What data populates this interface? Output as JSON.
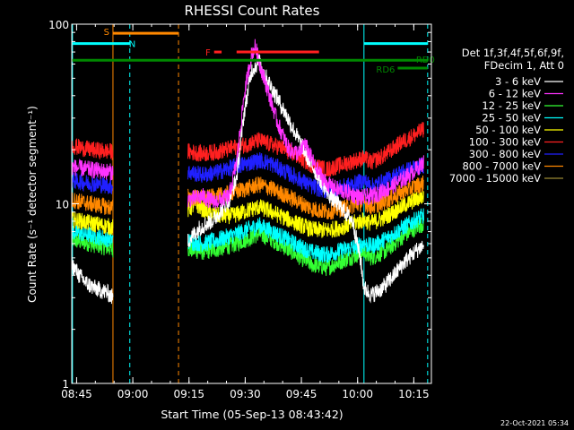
{
  "chart_data": {
    "type": "line",
    "title": "RHESSI Count Rates",
    "xlabel": "Start Time (05-Sep-13 08:43:42)",
    "ylabel": "Count Rate (s⁻¹ detector segment⁻¹)",
    "yscale": "log",
    "ylim": [
      1,
      100
    ],
    "xlim_minutes": [
      0,
      96
    ],
    "x_ticks": [
      {
        "label": "08:45",
        "minute": 1.3
      },
      {
        "label": "09:00",
        "minute": 16.3
      },
      {
        "label": "09:15",
        "minute": 31.3
      },
      {
        "label": "09:30",
        "minute": 46.3
      },
      {
        "label": "09:45",
        "minute": 61.3
      },
      {
        "label": "10:00",
        "minute": 76.3
      },
      {
        "label": "10:15",
        "minute": 91.3
      }
    ],
    "y_ticks": [
      {
        "label": "1",
        "value": 1
      },
      {
        "label": "10",
        "value": 10
      },
      {
        "label": "100",
        "value": 100
      }
    ],
    "legend_header": [
      "Det 1f,3f,4f,5f,6f,9f,",
      "FDecim 1, Att 0"
    ],
    "data_gap_minutes": [
      11,
      31
    ],
    "series": [
      {
        "name": "3 - 6 keV",
        "color": "#ffffff",
        "pts": [
          [
            0,
            4.6
          ],
          [
            2,
            4.0
          ],
          [
            4,
            3.6
          ],
          [
            6,
            3.4
          ],
          [
            9.5,
            3.2
          ],
          [
            11,
            3.0
          ],
          [
            31,
            6.2
          ],
          [
            34,
            7.3
          ],
          [
            38,
            8.2
          ],
          [
            42,
            10.5
          ],
          [
            44,
            14
          ],
          [
            46,
            32
          ],
          [
            48,
            55
          ],
          [
            50,
            62
          ],
          [
            52,
            50
          ],
          [
            56,
            35
          ],
          [
            60,
            24
          ],
          [
            63,
            18
          ],
          [
            66,
            14
          ],
          [
            69,
            11
          ],
          [
            72,
            9.5
          ],
          [
            75,
            8
          ],
          [
            77,
            5
          ],
          [
            78,
            3.4
          ],
          [
            80,
            3.1
          ],
          [
            83,
            3.4
          ],
          [
            86,
            4
          ],
          [
            89,
            4.8
          ],
          [
            92,
            5.5
          ],
          [
            94,
            5.9
          ]
        ]
      },
      {
        "name": "6 - 12 keV",
        "color": "#ff33ff",
        "pts": [
          [
            0,
            16
          ],
          [
            5,
            15.5
          ],
          [
            11,
            15
          ],
          [
            31,
            10.5
          ],
          [
            35,
            11
          ],
          [
            38,
            10.2
          ],
          [
            42,
            11
          ],
          [
            44,
            17
          ],
          [
            46,
            40
          ],
          [
            48,
            68
          ],
          [
            49,
            75
          ],
          [
            50,
            62
          ],
          [
            52,
            45
          ],
          [
            55,
            28
          ],
          [
            58,
            20
          ],
          [
            61,
            19
          ],
          [
            62,
            22
          ],
          [
            63,
            20
          ],
          [
            65,
            16
          ],
          [
            68,
            13
          ],
          [
            71,
            12
          ],
          [
            74,
            11.5
          ],
          [
            77,
            10.8
          ],
          [
            80,
            11
          ],
          [
            84,
            12
          ],
          [
            88,
            13.5
          ],
          [
            91,
            15
          ],
          [
            94,
            17
          ]
        ]
      },
      {
        "name": "12 - 25 keV",
        "color": "#33ff33",
        "pts": [
          [
            0,
            6.3
          ],
          [
            5,
            6.0
          ],
          [
            11,
            5.6
          ],
          [
            31,
            5.6
          ],
          [
            35,
            5.4
          ],
          [
            39,
            5.6
          ],
          [
            43,
            5.9
          ],
          [
            47,
            6.4
          ],
          [
            50,
            6.8
          ],
          [
            53,
            6.4
          ],
          [
            56,
            5.9
          ],
          [
            60,
            5.2
          ],
          [
            64,
            4.6
          ],
          [
            68,
            4.4
          ],
          [
            72,
            4.8
          ],
          [
            76,
            5.2
          ],
          [
            78,
            5.4
          ],
          [
            80,
            5.0
          ],
          [
            84,
            5.5
          ],
          [
            88,
            6.5
          ],
          [
            92,
            7.4
          ],
          [
            94,
            7.8
          ]
        ]
      },
      {
        "name": "25 - 50 keV",
        "color": "#00ffff",
        "pts": [
          [
            0,
            7.0
          ],
          [
            5,
            6.7
          ],
          [
            11,
            6.3
          ],
          [
            31,
            6.2
          ],
          [
            35,
            6.0
          ],
          [
            39,
            6.3
          ],
          [
            43,
            6.7
          ],
          [
            47,
            7.2
          ],
          [
            50,
            7.6
          ],
          [
            53,
            7.1
          ],
          [
            56,
            6.6
          ],
          [
            60,
            5.9
          ],
          [
            64,
            5.4
          ],
          [
            68,
            5.2
          ],
          [
            72,
            5.5
          ],
          [
            76,
            5.8
          ],
          [
            78,
            6.0
          ],
          [
            80,
            5.8
          ],
          [
            84,
            6.4
          ],
          [
            88,
            7.3
          ],
          [
            92,
            8.2
          ],
          [
            94,
            8.6
          ]
        ]
      },
      {
        "name": "50 - 100 keV",
        "color": "#ffff00",
        "pts": [
          [
            0,
            8.2
          ],
          [
            5,
            7.8
          ],
          [
            11,
            7.4
          ],
          [
            31,
            9.2
          ],
          [
            33,
            10
          ],
          [
            36,
            9.0
          ],
          [
            39,
            8.6
          ],
          [
            43,
            8.6
          ],
          [
            47,
            9.2
          ],
          [
            50,
            9.6
          ],
          [
            53,
            9.1
          ],
          [
            56,
            8.5
          ],
          [
            60,
            7.8
          ],
          [
            64,
            7.2
          ],
          [
            68,
            7.1
          ],
          [
            72,
            7.4
          ],
          [
            76,
            7.9
          ],
          [
            78,
            8.1
          ],
          [
            80,
            7.8
          ],
          [
            84,
            8.5
          ],
          [
            88,
            9.6
          ],
          [
            92,
            10.6
          ],
          [
            94,
            11
          ]
        ]
      },
      {
        "name": "100 - 300 keV",
        "color": "#ff2020",
        "pts": [
          [
            0,
            21
          ],
          [
            5,
            20
          ],
          [
            11,
            19.5
          ],
          [
            31,
            19.5
          ],
          [
            35,
            19
          ],
          [
            39,
            19.5
          ],
          [
            43,
            20.5
          ],
          [
            47,
            21.5
          ],
          [
            50,
            22.5
          ],
          [
            53,
            21.5
          ],
          [
            56,
            20.5
          ],
          [
            60,
            18.5
          ],
          [
            64,
            16.5
          ],
          [
            68,
            15.5
          ],
          [
            72,
            16.5
          ],
          [
            76,
            17.5
          ],
          [
            78,
            18
          ],
          [
            80,
            17
          ],
          [
            84,
            19
          ],
          [
            88,
            22
          ],
          [
            92,
            24.5
          ],
          [
            94,
            26
          ]
        ]
      },
      {
        "name": "300 - 800 keV",
        "color": "#2020ff",
        "pts": [
          [
            0,
            13.5
          ],
          [
            5,
            13
          ],
          [
            11,
            12.5
          ],
          [
            31,
            15
          ],
          [
            35,
            14.5
          ],
          [
            39,
            15
          ],
          [
            43,
            16
          ],
          [
            47,
            16.8
          ],
          [
            50,
            17.5
          ],
          [
            53,
            16.8
          ],
          [
            56,
            15.5
          ],
          [
            60,
            14
          ],
          [
            64,
            12.5
          ],
          [
            68,
            11.8
          ],
          [
            72,
            12.3
          ],
          [
            76,
            13
          ],
          [
            78,
            13.5
          ],
          [
            80,
            12.5
          ],
          [
            84,
            13.5
          ],
          [
            88,
            15
          ],
          [
            92,
            16
          ],
          [
            94,
            16.5
          ]
        ]
      },
      {
        "name": "800 - 7000 keV",
        "color": "#ff8800",
        "pts": [
          [
            0,
            10.5
          ],
          [
            5,
            10
          ],
          [
            11,
            9.5
          ],
          [
            31,
            11
          ],
          [
            35,
            10.7
          ],
          [
            39,
            11
          ],
          [
            43,
            11.6
          ],
          [
            47,
            12.2
          ],
          [
            50,
            12.8
          ],
          [
            53,
            12.2
          ],
          [
            56,
            11.4
          ],
          [
            60,
            10.4
          ],
          [
            64,
            9.4
          ],
          [
            68,
            9
          ],
          [
            72,
            9.4
          ],
          [
            76,
            9.9
          ],
          [
            78,
            10.2
          ],
          [
            80,
            9.6
          ],
          [
            84,
            10.4
          ],
          [
            88,
            11.6
          ],
          [
            92,
            12.6
          ],
          [
            94,
            13
          ]
        ]
      },
      {
        "name": "7000 - 15000 keV",
        "color": "#998833",
        "pts": []
      }
    ],
    "bars": [
      {
        "label": "S",
        "color": "#ff8800",
        "y": 89,
        "x0": 11,
        "x1": 28.5
      },
      {
        "label": "N",
        "color": "#00ffff",
        "y": 78,
        "x0": 0,
        "x1": 15.5
      },
      {
        "label": "",
        "color": "#00ffff",
        "y": 78,
        "x0": 78,
        "x1": 95
      },
      {
        "label": "F",
        "color": "#ff2020",
        "y": 70,
        "x0": 38,
        "x1": 40
      },
      {
        "label": "",
        "color": "#ff2020",
        "y": 70,
        "x0": 44,
        "x1": 66
      },
      {
        "label": "RD0",
        "color": "#008800",
        "y": 63,
        "x0": 0,
        "x1": 95
      },
      {
        "label": "RD6",
        "color": "#008800",
        "y": 57,
        "x0": 87,
        "x1": 95
      }
    ],
    "vlines": [
      {
        "minute": 0.2,
        "color": "#00ffff",
        "dash": false
      },
      {
        "minute": 11,
        "color": "#ff8800",
        "dash": false
      },
      {
        "minute": 15.5,
        "color": "#00ffff",
        "dash": true
      },
      {
        "minute": 28.5,
        "color": "#ff8800",
        "dash": true
      },
      {
        "minute": 78,
        "color": "#00ffff",
        "dash": false
      },
      {
        "minute": 95,
        "color": "#00ffff",
        "dash": true
      }
    ],
    "timestamp": "22-Oct-2021 05:34"
  }
}
